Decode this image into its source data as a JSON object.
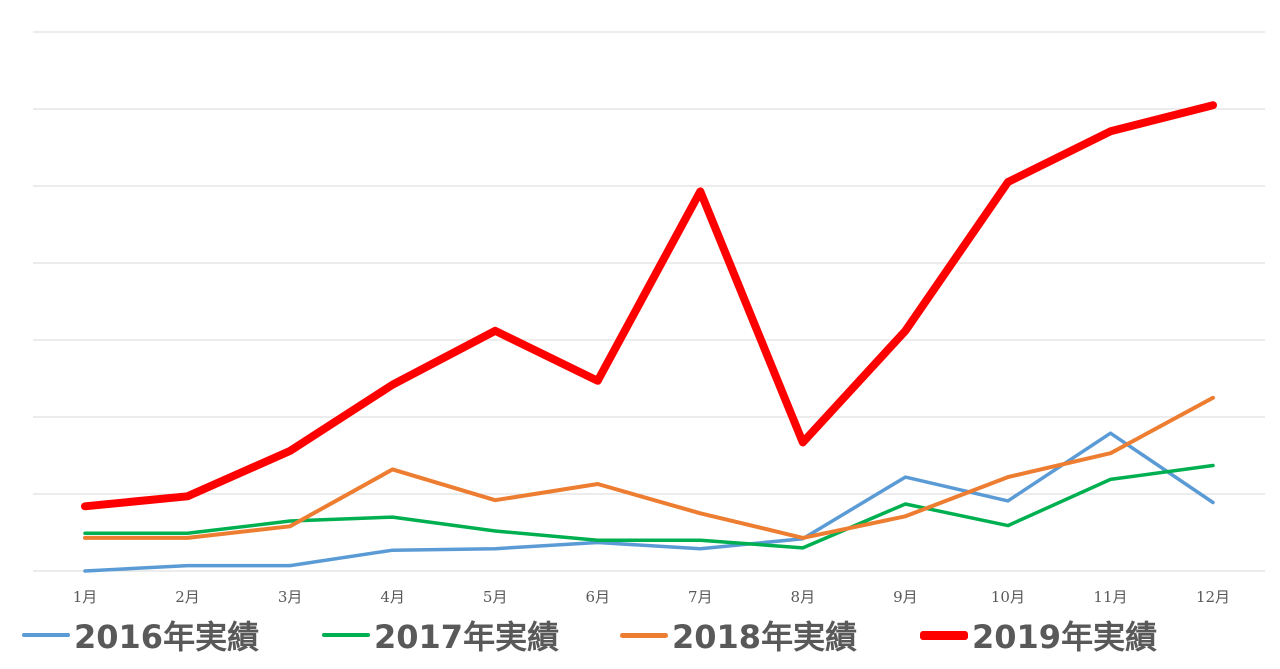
{
  "chart_data": {
    "type": "line",
    "categories": [
      "1月",
      "2月",
      "3月",
      "4月",
      "5月",
      "6月",
      "7月",
      "8月",
      "9月",
      "10月",
      "11月",
      "12月"
    ],
    "ylim": [
      0,
      7
    ],
    "grid": true,
    "legend_position": "bottom",
    "series": [
      {
        "name": "2016年実績",
        "color": "#5b9bd5",
        "values": [
          0.0,
          0.07,
          0.07,
          0.27,
          0.29,
          0.37,
          0.29,
          0.42,
          1.22,
          0.91,
          1.79,
          0.89
        ]
      },
      {
        "name": "2017年実績",
        "color": "#00b050",
        "values": [
          0.49,
          0.49,
          0.65,
          0.7,
          0.52,
          0.4,
          0.4,
          0.3,
          0.87,
          0.59,
          1.19,
          1.37
        ]
      },
      {
        "name": "2018年実績",
        "color": "#ed7d31",
        "values": [
          0.43,
          0.43,
          0.58,
          1.32,
          0.92,
          1.13,
          0.75,
          0.43,
          0.71,
          1.22,
          1.53,
          2.25
        ]
      },
      {
        "name": "2019年実績",
        "color": "#ff0000",
        "values": [
          0.84,
          0.97,
          1.56,
          2.42,
          3.12,
          2.47,
          4.93,
          1.67,
          3.12,
          5.05,
          5.71,
          6.05
        ]
      }
    ]
  }
}
